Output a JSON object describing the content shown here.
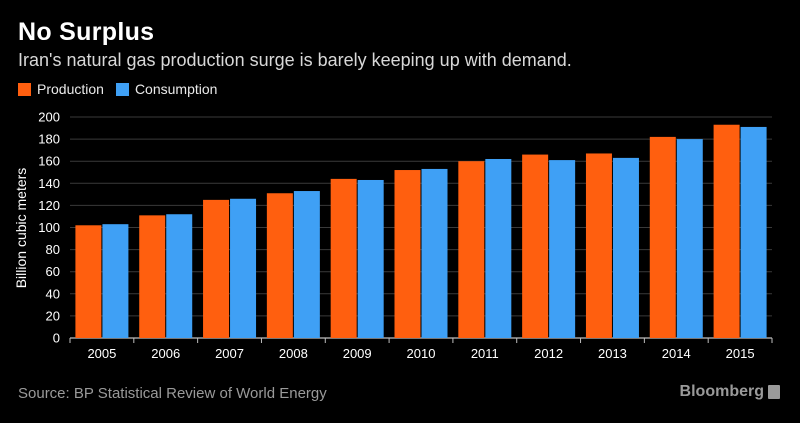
{
  "header": {
    "title": "No Surplus",
    "subtitle": "Iran's natural gas production surge is barely keeping up with demand."
  },
  "legend": {
    "items": [
      {
        "label": "Production",
        "color": "#ff5f0f"
      },
      {
        "label": "Consumption",
        "color": "#3fa0f5"
      }
    ]
  },
  "footer": {
    "source": "Source: BP Statistical Review of World Energy",
    "brand": "Bloomberg"
  },
  "chart_data": {
    "type": "bar",
    "title": "No Surplus",
    "subtitle": "Iran's natural gas production surge is barely keeping up with demand.",
    "xlabel": "",
    "ylabel": "Billion cubic meters",
    "ylim": [
      0,
      200
    ],
    "yticks": [
      0,
      20,
      40,
      60,
      80,
      100,
      120,
      140,
      160,
      180,
      200
    ],
    "grid": true,
    "legend_position": "top-left",
    "categories": [
      "2005",
      "2006",
      "2007",
      "2008",
      "2009",
      "2010",
      "2011",
      "2012",
      "2013",
      "2014",
      "2015"
    ],
    "series": [
      {
        "name": "Production",
        "color": "#ff5f0f",
        "values": [
          102,
          111,
          125,
          131,
          144,
          152,
          160,
          166,
          167,
          182,
          193
        ]
      },
      {
        "name": "Consumption",
        "color": "#3fa0f5",
        "values": [
          103,
          112,
          126,
          133,
          143,
          153,
          162,
          161,
          163,
          180,
          191
        ]
      }
    ]
  }
}
